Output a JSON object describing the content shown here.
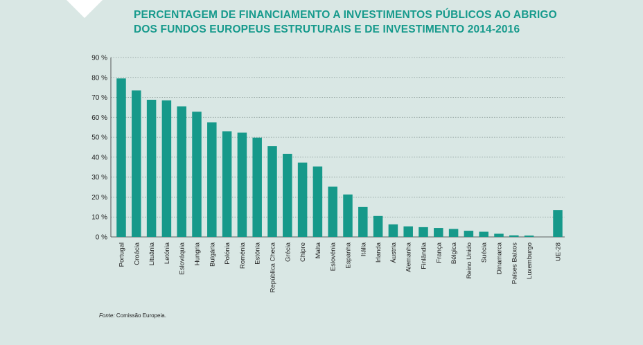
{
  "chart_data": {
    "type": "bar",
    "title_lines": [
      "PERCENTAGEM DE FINANCIAMENTO A INVESTIMENTOS PÚBLICOS AO ABRIGO",
      "DOS FUNDOS EUROPEUS ESTRUTURAIS E DE INVESTIMENTO 2014-2016"
    ],
    "categories": [
      "Portugal",
      "Croácia",
      "Lituânia",
      "Letónia",
      "Eslováquia",
      "Hungria",
      "Bulgária",
      "Polónia",
      "Roménia",
      "Estónia",
      "República Checa",
      "Grécia",
      "Chipre",
      "Malta",
      "Eslovénia",
      "Espanha",
      "Itália",
      "Irlanda",
      "Áustria",
      "Alemanha",
      "Finlândia",
      "França",
      "Bélgica",
      "Reino Unido",
      "Suécia",
      "Dinamarca",
      "Países Baixos",
      "Luxemburgo",
      "UE-28"
    ],
    "values": [
      79.5,
      73.5,
      68.8,
      68.5,
      65.5,
      62.8,
      57.5,
      53.0,
      52.3,
      49.8,
      45.5,
      41.7,
      37.3,
      35.3,
      25.2,
      21.3,
      15.0,
      10.5,
      6.3,
      5.3,
      4.9,
      4.5,
      4.0,
      3.1,
      2.6,
      1.6,
      0.8,
      0.7,
      13.5
    ],
    "ylim": [
      0,
      90
    ],
    "yticks": [
      0,
      10,
      20,
      30,
      40,
      50,
      60,
      70,
      80,
      90
    ],
    "ytick_labels": [
      "0 %",
      "10 %",
      "20 %",
      "30 %",
      "40 %",
      "50 %",
      "60 %",
      "70 %",
      "80 %",
      "90 %"
    ],
    "grid": true,
    "bar_color": "#16998a"
  },
  "source": {
    "label": "Fonte:",
    "text": "Comissão Europeia."
  },
  "colors": {
    "background": "#d9e7e4",
    "title": "#169a8c",
    "bar": "#16998a",
    "grid": "#8a9a97"
  }
}
